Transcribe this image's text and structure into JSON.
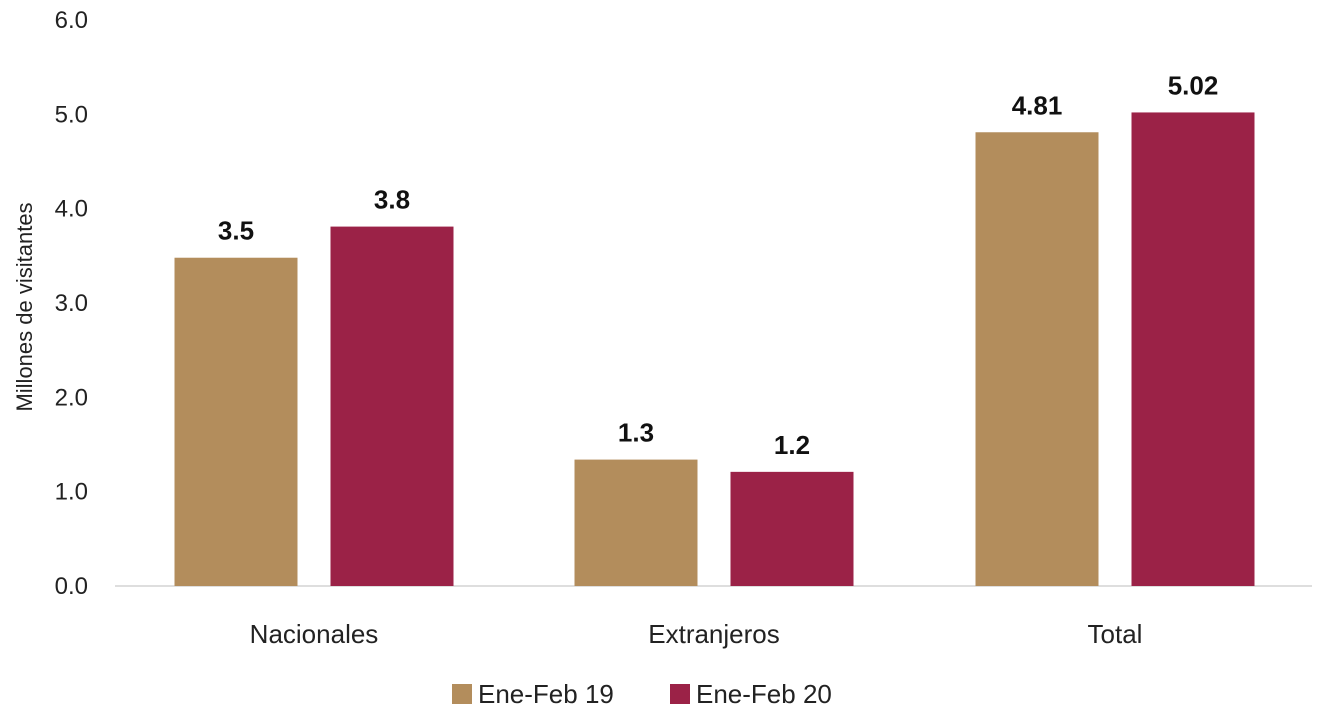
{
  "chart_data": {
    "type": "bar",
    "title": "",
    "xlabel": "",
    "ylabel": "Millones de visitantes",
    "categories": [
      "Nacionales",
      "Extranjeros",
      "Total"
    ],
    "series": [
      {
        "name": "Ene-Feb 19",
        "color": "#B38D5C",
        "values": [
          3.48,
          1.34,
          4.81
        ],
        "labels": [
          "3.5",
          "1.3",
          "4.81"
        ]
      },
      {
        "name": "Ene-Feb 20",
        "color": "#9B2247",
        "values": [
          3.81,
          1.21,
          5.02
        ],
        "labels": [
          "3.8",
          "1.2",
          "5.02"
        ]
      }
    ],
    "ylim": [
      0,
      6
    ],
    "yticks": [
      "0.0",
      "1.0",
      "2.0",
      "3.0",
      "4.0",
      "5.0",
      "6.0"
    ],
    "grid": false,
    "legend": "bottom"
  }
}
